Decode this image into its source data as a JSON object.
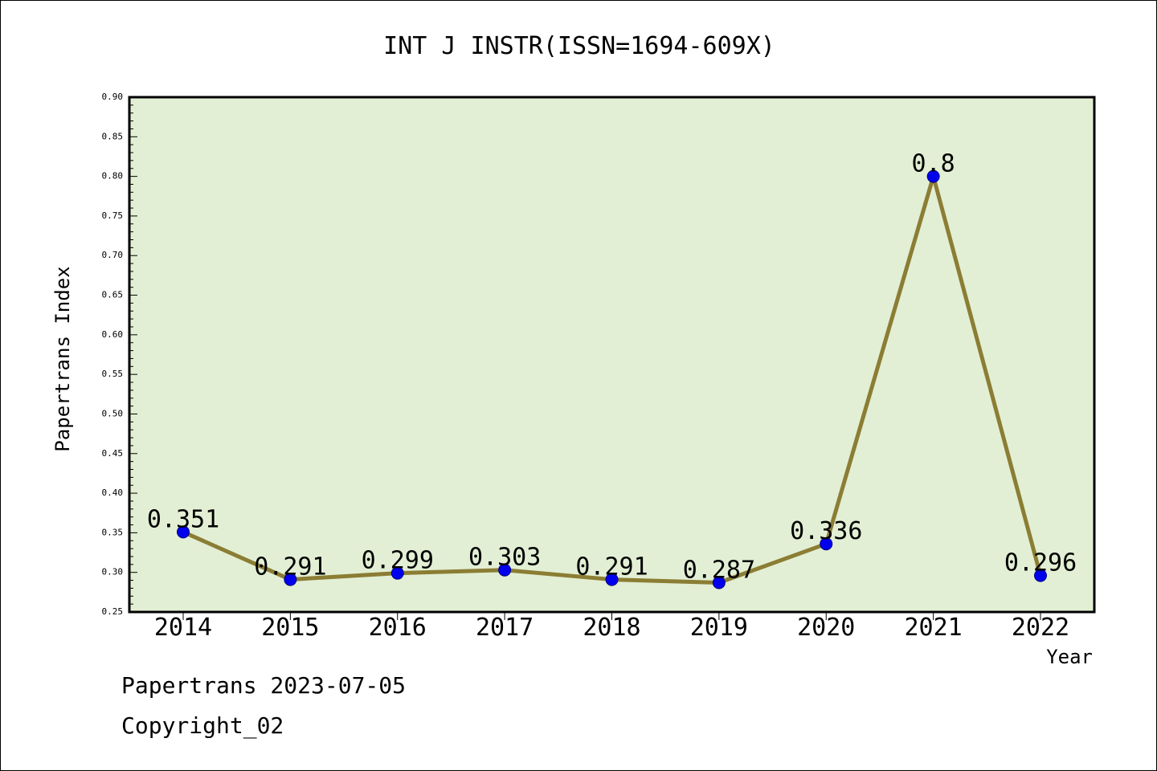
{
  "chart_data": {
    "type": "line",
    "title": "INT J INSTR(ISSN=1694-609X)",
    "xlabel": "Year",
    "ylabel": "Papertrans Index",
    "categories": [
      "2014",
      "2015",
      "2016",
      "2017",
      "2018",
      "2019",
      "2020",
      "2021",
      "2022"
    ],
    "values": [
      0.351,
      0.291,
      0.299,
      0.303,
      0.291,
      0.287,
      0.336,
      0.8,
      0.296
    ],
    "data_labels": [
      "0.351",
      "0.291",
      "0.299",
      "0.303",
      "0.291",
      "0.287",
      "0.336",
      "0.8",
      "0.296"
    ],
    "ylim": [
      0.25,
      0.9
    ],
    "yticks": [
      "0.25",
      "0.30",
      "0.35",
      "0.40",
      "0.45",
      "0.50",
      "0.55",
      "0.60",
      "0.65",
      "0.70",
      "0.75",
      "0.80",
      "0.85",
      "0.90"
    ],
    "grid": false,
    "legend": "none",
    "colors": {
      "plot_background": "#e2efd4",
      "line": "#8b7d34",
      "marker": "#0000ee",
      "frame": "#000000"
    }
  },
  "footer": {
    "line1": "Papertrans 2023-07-05",
    "line2": "Copyright_02"
  }
}
